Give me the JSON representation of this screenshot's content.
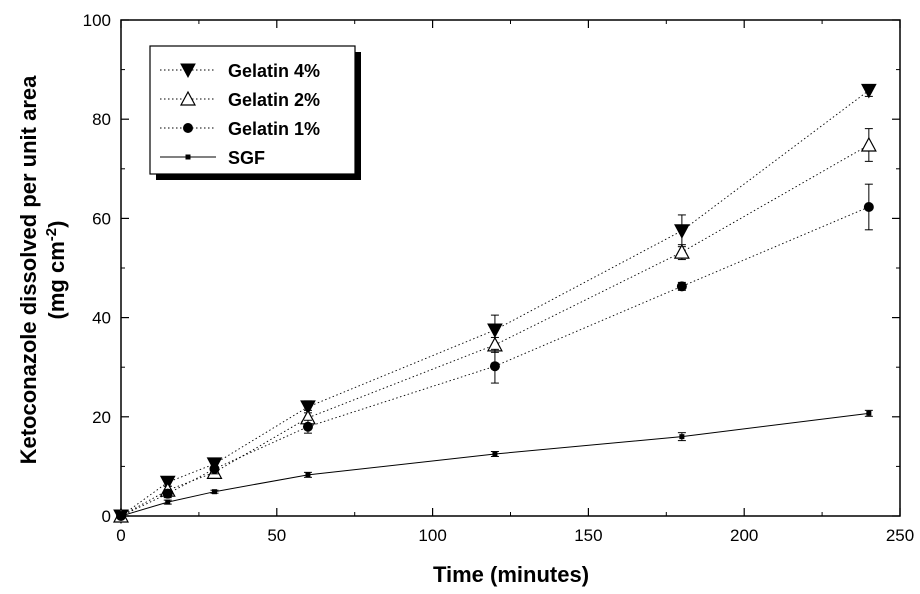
{
  "chart_data": {
    "type": "line",
    "xlabel": "Time (minutes)",
    "ylabel_line1": "Ketoconazole dissolved per unit area",
    "ylabel_line2_prefix": "(mg cm",
    "ylabel_line2_sup": "-2",
    "ylabel_line2_suffix": ")",
    "xlim": [
      0,
      250
    ],
    "ylim": [
      0,
      100
    ],
    "xticks": [
      0,
      50,
      100,
      150,
      200,
      250
    ],
    "yticks": [
      0,
      20,
      40,
      60,
      80,
      100
    ],
    "grid": false,
    "legend_position": "top-left",
    "series": [
      {
        "name": "Gelatin 4%",
        "marker": "triangle-down-filled",
        "line_style": "dotted",
        "x": [
          0,
          15,
          30,
          60,
          120,
          180,
          240
        ],
        "y": [
          0,
          6.8,
          10.5,
          22.0,
          37.5,
          57.5,
          85.8
        ],
        "err": [
          0,
          0.8,
          1.0,
          1.2,
          3.0,
          3.2,
          1.2
        ]
      },
      {
        "name": "Gelatin 2%",
        "marker": "triangle-up-open",
        "line_style": "dotted",
        "x": [
          0,
          15,
          30,
          60,
          120,
          180,
          240
        ],
        "y": [
          0,
          5.2,
          8.8,
          19.8,
          34.5,
          53.2,
          74.8
        ],
        "err": [
          0,
          0.8,
          0.9,
          1.5,
          1.5,
          1.5,
          3.3
        ]
      },
      {
        "name": "Gelatin 1%",
        "marker": "circle-filled",
        "line_style": "dotted",
        "x": [
          0,
          15,
          30,
          60,
          120,
          180,
          240
        ],
        "y": [
          0,
          4.5,
          9.5,
          18.0,
          30.2,
          46.3,
          62.3
        ],
        "err": [
          0,
          0.8,
          1.0,
          1.3,
          3.4,
          0.8,
          4.6
        ]
      },
      {
        "name": "SGF",
        "marker": "square-small",
        "line_style": "solid",
        "x": [
          0,
          15,
          30,
          60,
          120,
          180,
          240
        ],
        "y": [
          0,
          2.8,
          4.9,
          8.3,
          12.5,
          16.0,
          20.7
        ],
        "err": [
          0,
          0.4,
          0.3,
          0.5,
          0.5,
          0.8,
          0.6
        ]
      }
    ]
  }
}
